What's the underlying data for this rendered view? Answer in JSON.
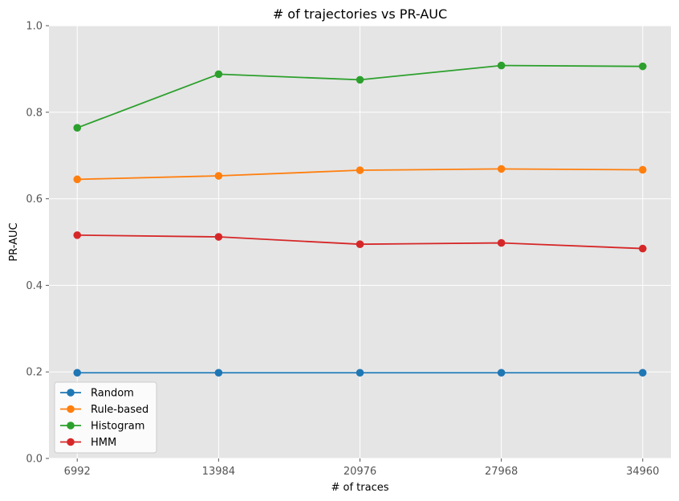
{
  "chart_data": {
    "type": "line",
    "title": "# of trajectories vs PR-AUC",
    "xlabel": "# of traces",
    "ylabel": "PR-AUC",
    "x": [
      6992,
      13984,
      20976,
      27968,
      34960
    ],
    "x_tick_labels": [
      "6992",
      "13984",
      "20976",
      "27968",
      "34960"
    ],
    "ylim": [
      0.0,
      1.0
    ],
    "y_ticks": [
      0.0,
      0.2,
      0.4,
      0.6,
      0.8,
      1.0
    ],
    "y_tick_labels": [
      "0.0",
      "0.2",
      "0.4",
      "0.6",
      "0.8",
      "1.0"
    ],
    "grid": true,
    "legend_position": "lower-left",
    "series": [
      {
        "name": "Random",
        "color": "#1f77b4",
        "values": [
          0.198,
          0.198,
          0.198,
          0.198,
          0.198
        ]
      },
      {
        "name": "Rule-based",
        "color": "#ff7f0e",
        "values": [
          0.645,
          0.653,
          0.666,
          0.669,
          0.667
        ]
      },
      {
        "name": "Histogram",
        "color": "#2ca02c",
        "values": [
          0.764,
          0.888,
          0.875,
          0.908,
          0.906
        ]
      },
      {
        "name": "HMM",
        "color": "#d62728",
        "values": [
          0.516,
          0.512,
          0.495,
          0.498,
          0.485
        ]
      }
    ]
  },
  "style": {
    "plot_background": "#e5e5e5",
    "grid_color": "#ffffff"
  }
}
